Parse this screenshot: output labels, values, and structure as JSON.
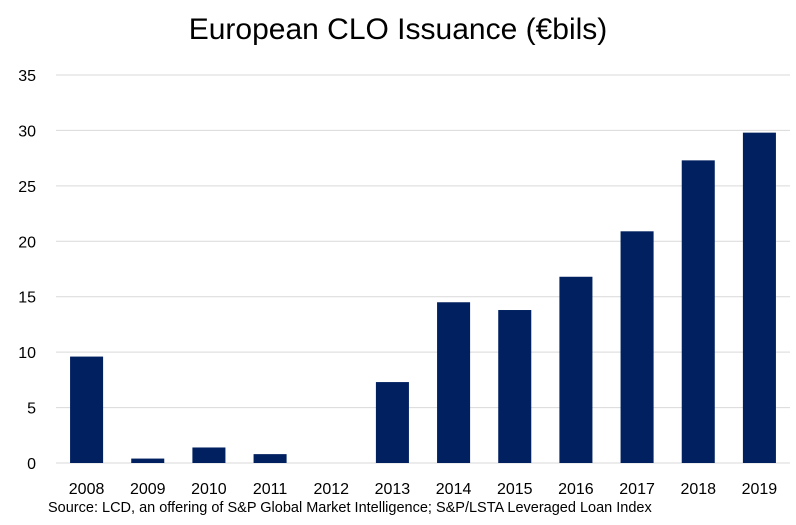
{
  "chart_data": {
    "type": "bar",
    "title": "European CLO Issuance (€bils)",
    "xlabel": "",
    "ylabel": "",
    "categories": [
      "2008",
      "2009",
      "2010",
      "2011",
      "2012",
      "2013",
      "2014",
      "2015",
      "2016",
      "2017",
      "2018",
      "2019"
    ],
    "values": [
      9.6,
      0.4,
      1.4,
      0.8,
      0,
      7.3,
      14.5,
      13.8,
      16.8,
      20.9,
      27.3,
      29.8
    ],
    "ylim": [
      0,
      35
    ],
    "yticks": [
      "0",
      "5",
      "10",
      "15",
      "20",
      "25",
      "30",
      "35"
    ],
    "grid": true,
    "legend": "none",
    "bar_color": "#002060",
    "grid_color": "#d9d9d9",
    "source": "Source: LCD, an offering of S&P Global Market Intelligence; S&P/LSTA Leveraged Loan Index"
  }
}
